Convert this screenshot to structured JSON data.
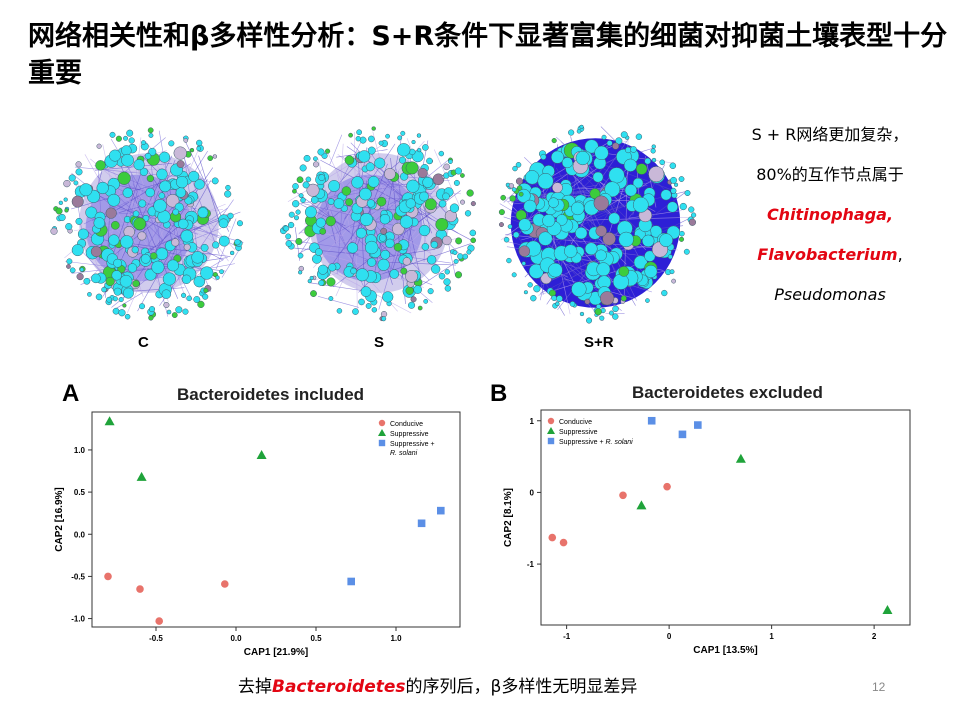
{
  "slide": {
    "title": "网络相关性和β多样性分析：S+R条件下显著富集的细菌对抑菌土壤表型十分重要",
    "page_number": "12"
  },
  "networks": [
    {
      "label": "C"
    },
    {
      "label": "S"
    },
    {
      "label": "S+R"
    }
  ],
  "side_note": {
    "line1": "S + R网络更加复杂，",
    "line2": "80%的互作节点属于",
    "genus1": "Chitinophaga,",
    "genus2": "Flavobacterium",
    "genus2_suffix": ",",
    "genus3": "Pseudomonas"
  },
  "caption": {
    "prefix": "去掉",
    "highlight": "Bacteroidetes",
    "suffix": "的序列后，β多样性无明显差异"
  },
  "colors": {
    "conducive": "#e8736b",
    "suppressive": "#1fa33a",
    "suppressive_rs": "#5b8fe6",
    "highlight_red": "#e30613"
  },
  "chart_data": [
    {
      "type": "scatter",
      "panel": "A",
      "title": "Bacteroidetes included",
      "xlabel": "CAP1  [21.9%]",
      "ylabel": "CAP2  [16.9%]",
      "xlim": [
        -0.9,
        1.4
      ],
      "ylim": [
        -1.1,
        1.45
      ],
      "xticks": [
        -0.5,
        0.0,
        0.5,
        1.0
      ],
      "xtick_labels": [
        "-0.5",
        "0.0",
        "0.5",
        "1.0"
      ],
      "yticks": [
        -1.0,
        -0.5,
        0.0,
        0.5,
        1.0
      ],
      "ytick_labels": [
        "-1.0",
        "-0.5",
        "0.0",
        "0.5",
        "1.0"
      ],
      "legend_position": "top-right",
      "series": [
        {
          "name": "Conducive",
          "marker": "circle",
          "points": [
            [
              -0.8,
              -0.5
            ],
            [
              -0.6,
              -0.65
            ],
            [
              -0.48,
              -1.03
            ],
            [
              -0.07,
              -0.59
            ]
          ]
        },
        {
          "name": "Suppressive",
          "marker": "triangle",
          "points": [
            [
              -0.79,
              1.34
            ],
            [
              -0.59,
              0.68
            ],
            [
              0.16,
              0.94
            ]
          ]
        },
        {
          "name": "Suppressive + R. solani",
          "marker": "square",
          "points": [
            [
              0.72,
              -0.56
            ],
            [
              1.16,
              0.13
            ],
            [
              1.28,
              0.28
            ]
          ]
        }
      ]
    },
    {
      "type": "scatter",
      "panel": "B",
      "title": "Bacteroidetes excluded",
      "xlabel": "CAP1  [13.5%]",
      "ylabel": "CAP2  [8.1%]",
      "xlim": [
        -1.25,
        2.35
      ],
      "ylim": [
        -1.85,
        1.15
      ],
      "xticks": [
        -1,
        0,
        1,
        2
      ],
      "xtick_labels": [
        "-1",
        "0",
        "1",
        "2"
      ],
      "yticks": [
        -1,
        0,
        1
      ],
      "ytick_labels": [
        "-1",
        "0",
        "1"
      ],
      "legend_position": "top-left",
      "series": [
        {
          "name": "Conducive",
          "marker": "circle",
          "points": [
            [
              -1.14,
              -0.63
            ],
            [
              -1.03,
              -0.7
            ],
            [
              -0.45,
              -0.04
            ],
            [
              -0.02,
              0.08
            ]
          ]
        },
        {
          "name": "Suppressive",
          "marker": "triangle",
          "points": [
            [
              -0.27,
              -0.18
            ],
            [
              0.7,
              0.47
            ],
            [
              2.13,
              -1.64
            ]
          ]
        },
        {
          "name": "Suppressive + R. solani",
          "marker": "square",
          "points": [
            [
              -0.17,
              1.0
            ],
            [
              0.13,
              0.81
            ],
            [
              0.28,
              0.94
            ]
          ]
        }
      ]
    }
  ]
}
